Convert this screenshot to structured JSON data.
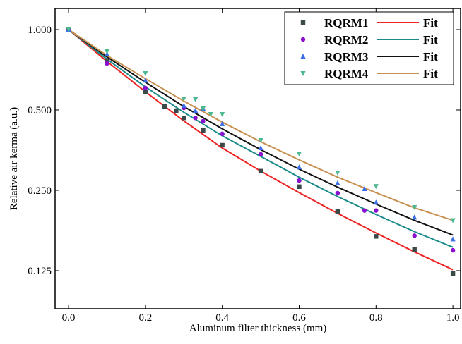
{
  "chart_data": {
    "type": "scatter",
    "xlabel": "Aluminum filter thickness (mm)",
    "ylabel": "Relative air kerma (a.u.)",
    "xlim": [
      -0.035,
      1.02
    ],
    "ylim": [
      0.09,
      1.2
    ],
    "ylog": true,
    "grid": false,
    "legend": "upper right",
    "xticks": [
      {
        "value": 0,
        "label": "0.0"
      },
      {
        "value": 0.2,
        "label": "0.2"
      },
      {
        "value": 0.4,
        "label": "0.4"
      },
      {
        "value": 0.6,
        "label": "0.6"
      },
      {
        "value": 0.8,
        "label": "0.8"
      },
      {
        "value": 1,
        "label": "1.0"
      }
    ],
    "yticks": [
      {
        "value": 0.125,
        "label": "0.125"
      },
      {
        "value": 0.25,
        "label": "0.250"
      },
      {
        "value": 0.5,
        "label": "0.500"
      },
      {
        "value": 1,
        "label": "1.000"
      }
    ],
    "series": [
      {
        "name": "RQRM1",
        "color": "#3a4a48",
        "marker": "square",
        "x": [
          0,
          0.1,
          0.2,
          0.25,
          0.28,
          0.3,
          0.35,
          0.4,
          0.5,
          0.6,
          0.7,
          0.8,
          0.9,
          1.0
        ],
        "values": [
          1.0,
          0.761,
          0.585,
          0.515,
          0.497,
          0.467,
          0.419,
          0.369,
          0.295,
          0.258,
          0.208,
          0.168,
          0.15,
          0.122
        ],
        "fit": {
          "name": "Fit",
          "color": "#ee2222",
          "x": [
            0,
            0.1,
            0.2,
            0.3,
            0.4,
            0.5,
            0.6,
            0.7,
            0.8,
            0.9,
            1.0
          ],
          "values": [
            1.0,
            0.76,
            0.585,
            0.455,
            0.36,
            0.295,
            0.245,
            0.205,
            0.173,
            0.147,
            0.126
          ]
        }
      },
      {
        "name": "RQRM2",
        "color": "#8a10d0",
        "marker": "circle",
        "x": [
          0,
          0.1,
          0.2,
          0.3,
          0.33,
          0.35,
          0.4,
          0.5,
          0.6,
          0.7,
          0.77,
          0.8,
          0.9,
          1.0
        ],
        "values": [
          1.0,
          0.747,
          0.604,
          0.509,
          0.467,
          0.454,
          0.407,
          0.341,
          0.272,
          0.244,
          0.21,
          0.21,
          0.169,
          0.149
        ],
        "fit": {
          "name": "Fit",
          "color": "#1a8a8a",
          "x": [
            0,
            0.1,
            0.2,
            0.3,
            0.4,
            0.5,
            0.6,
            0.7,
            0.8,
            0.9,
            1.0
          ],
          "values": [
            1.0,
            0.775,
            0.61,
            0.49,
            0.4,
            0.335,
            0.28,
            0.237,
            0.203,
            0.175,
            0.153
          ]
        }
      },
      {
        "name": "RQRM3",
        "color": "#3a6ee8",
        "marker": "triangle-up",
        "x": [
          0,
          0.1,
          0.2,
          0.3,
          0.33,
          0.35,
          0.4,
          0.5,
          0.6,
          0.7,
          0.77,
          0.8,
          0.9,
          1.0
        ],
        "values": [
          1.0,
          0.808,
          0.645,
          0.519,
          0.497,
          0.506,
          0.443,
          0.36,
          0.305,
          0.266,
          0.253,
          0.225,
          0.198,
          0.164
        ],
        "fit": {
          "name": "Fit",
          "color": "#111111",
          "x": [
            0,
            0.1,
            0.2,
            0.3,
            0.4,
            0.5,
            0.6,
            0.7,
            0.8,
            0.9,
            1.0
          ],
          "values": [
            1.0,
            0.79,
            0.635,
            0.515,
            0.425,
            0.355,
            0.3,
            0.257,
            0.222,
            0.193,
            0.17
          ]
        }
      },
      {
        "name": "RQRM4",
        "color": "#4cb890",
        "marker": "triangle-down",
        "x": [
          0,
          0.1,
          0.2,
          0.3,
          0.33,
          0.35,
          0.37,
          0.4,
          0.5,
          0.6,
          0.7,
          0.8,
          0.9,
          1.0
        ],
        "values": [
          1.0,
          0.828,
          0.686,
          0.551,
          0.548,
          0.506,
          0.482,
          0.482,
          0.385,
          0.343,
          0.291,
          0.259,
          0.216,
          0.193
        ],
        "fit": {
          "name": "Fit",
          "color": "#c89050",
          "x": [
            0,
            0.1,
            0.2,
            0.3,
            0.4,
            0.5,
            0.6,
            0.7,
            0.8,
            0.9,
            1.0
          ],
          "values": [
            1.0,
            0.8,
            0.655,
            0.54,
            0.45,
            0.38,
            0.325,
            0.28,
            0.245,
            0.215,
            0.193
          ]
        }
      }
    ]
  }
}
